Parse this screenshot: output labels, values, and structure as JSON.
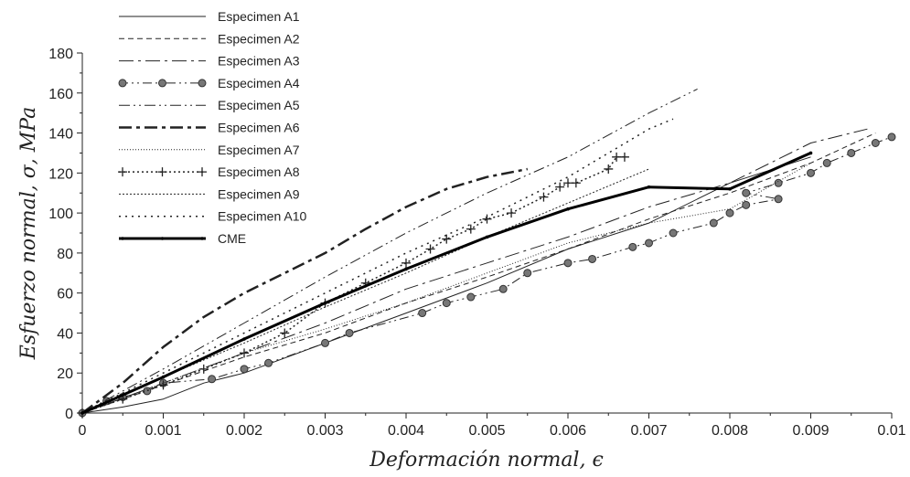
{
  "chart_data": {
    "type": "line",
    "xlabel": "Deformación normal, ϵ",
    "ylabel": "Esfuerzo normal, σ, MPa",
    "xlim": [
      0,
      0.01
    ],
    "ylim": [
      0,
      180
    ],
    "xticks": [
      "0",
      "0.001",
      "0.002",
      "0.003",
      "0.004",
      "0.005",
      "0.006",
      "0.007",
      "0.008",
      "0.009",
      "0.01"
    ],
    "yticks": [
      "0",
      "20",
      "40",
      "60",
      "80",
      "100",
      "120",
      "140",
      "160",
      "180"
    ],
    "grid": false,
    "legend_position": "top-left",
    "series": [
      {
        "name": "Especimen A1",
        "style": "solid",
        "color": "#222222",
        "x": [
          0,
          0.0005,
          0.001,
          0.0015,
          0.002,
          0.003,
          0.004,
          0.005,
          0.006,
          0.007,
          0.008,
          0.009
        ],
        "y": [
          0,
          3,
          7,
          15,
          20,
          35,
          50,
          65,
          82,
          95,
          115,
          128
        ]
      },
      {
        "name": "Especimen A2",
        "style": "dash",
        "color": "#222222",
        "x": [
          0,
          0.001,
          0.002,
          0.003,
          0.004,
          0.005,
          0.006,
          0.007,
          0.008,
          0.009,
          0.0098
        ],
        "y": [
          0,
          14,
          28,
          40,
          55,
          68,
          82,
          97,
          110,
          125,
          140
        ]
      },
      {
        "name": "Especimen A3",
        "style": "longdash-dot",
        "color": "#222222",
        "x": [
          0,
          0.001,
          0.002,
          0.003,
          0.004,
          0.005,
          0.006,
          0.007,
          0.008,
          0.009,
          0.0097
        ],
        "y": [
          0,
          15,
          30,
          45,
          62,
          75,
          88,
          103,
          115,
          135,
          142
        ]
      },
      {
        "name": "Especimen A4",
        "style": "dash-dot-dot-marker",
        "color": "#222222",
        "x": [
          0,
          0.0003,
          0.0005,
          0.0008,
          0.001,
          0.0016,
          0.002,
          0.0023,
          0.003,
          0.0033,
          0.0042,
          0.0045,
          0.0048,
          0.0052,
          0.0055,
          0.006,
          0.0063,
          0.0068,
          0.007,
          0.0073,
          0.0078,
          0.008,
          0.0082,
          0.0086,
          0.0082,
          0.0086,
          0.009,
          0.0092,
          0.0095,
          0.0098,
          0.01
        ],
        "y": [
          0,
          6,
          8,
          11,
          15,
          17,
          22,
          25,
          35,
          40,
          50,
          55,
          58,
          62,
          70,
          75,
          77,
          83,
          85,
          90,
          95,
          100,
          104,
          107,
          110,
          115,
          120,
          125,
          130,
          135,
          138
        ]
      },
      {
        "name": "Especimen A5",
        "style": "dash-dot-dot",
        "color": "#222222",
        "x": [
          0,
          0.001,
          0.002,
          0.003,
          0.004,
          0.005,
          0.006,
          0.007,
          0.0076
        ],
        "y": [
          0,
          22,
          45,
          68,
          90,
          110,
          128,
          150,
          162
        ]
      },
      {
        "name": "Especimen A6",
        "style": "thick-dash-dot",
        "color": "#222222",
        "x": [
          0,
          0.0005,
          0.001,
          0.0015,
          0.002,
          0.0025,
          0.003,
          0.0035,
          0.004,
          0.0045,
          0.005,
          0.0055
        ],
        "y": [
          0,
          15,
          33,
          48,
          60,
          70,
          80,
          92,
          103,
          112,
          118,
          122
        ]
      },
      {
        "name": "Especimen A7",
        "style": "fine-dot",
        "color": "#222222",
        "x": [
          0,
          0.001,
          0.002,
          0.003,
          0.004,
          0.005,
          0.006,
          0.007,
          0.008,
          0.009
        ],
        "y": [
          0,
          15,
          30,
          42,
          55,
          70,
          85,
          95,
          102,
          125
        ]
      },
      {
        "name": "Especimen A8",
        "style": "dot-plus",
        "color": "#222222",
        "x": [
          0,
          0.0005,
          0.001,
          0.0015,
          0.002,
          0.0025,
          0.003,
          0.0035,
          0.004,
          0.0043,
          0.0045,
          0.0048,
          0.005,
          0.0053,
          0.0057,
          0.0059,
          0.006,
          0.0061,
          0.0065,
          0.0066,
          0.0067
        ],
        "y": [
          0,
          7,
          14,
          22,
          30,
          40,
          55,
          65,
          75,
          82,
          87,
          92,
          97,
          100,
          108,
          113,
          115,
          115,
          122,
          128,
          128
        ]
      },
      {
        "name": "Especimen A9",
        "style": "dot",
        "color": "#222222",
        "x": [
          0,
          0.001,
          0.002,
          0.003,
          0.004,
          0.005,
          0.006,
          0.007
        ],
        "y": [
          0,
          18,
          35,
          53,
          70,
          88,
          105,
          122
        ]
      },
      {
        "name": "Especimen A10",
        "style": "loose-dot",
        "color": "#222222",
        "x": [
          0,
          0.001,
          0.002,
          0.003,
          0.004,
          0.005,
          0.006,
          0.007,
          0.0073
        ],
        "y": [
          0,
          20,
          40,
          60,
          80,
          98,
          118,
          142,
          147
        ]
      },
      {
        "name": "CME",
        "style": "thick-solid",
        "color": "#000000",
        "x": [
          0,
          0.001,
          0.002,
          0.003,
          0.004,
          0.005,
          0.006,
          0.007,
          0.008,
          0.009
        ],
        "y": [
          0,
          18,
          37,
          55,
          72,
          88,
          102,
          113,
          112,
          130
        ]
      }
    ]
  }
}
